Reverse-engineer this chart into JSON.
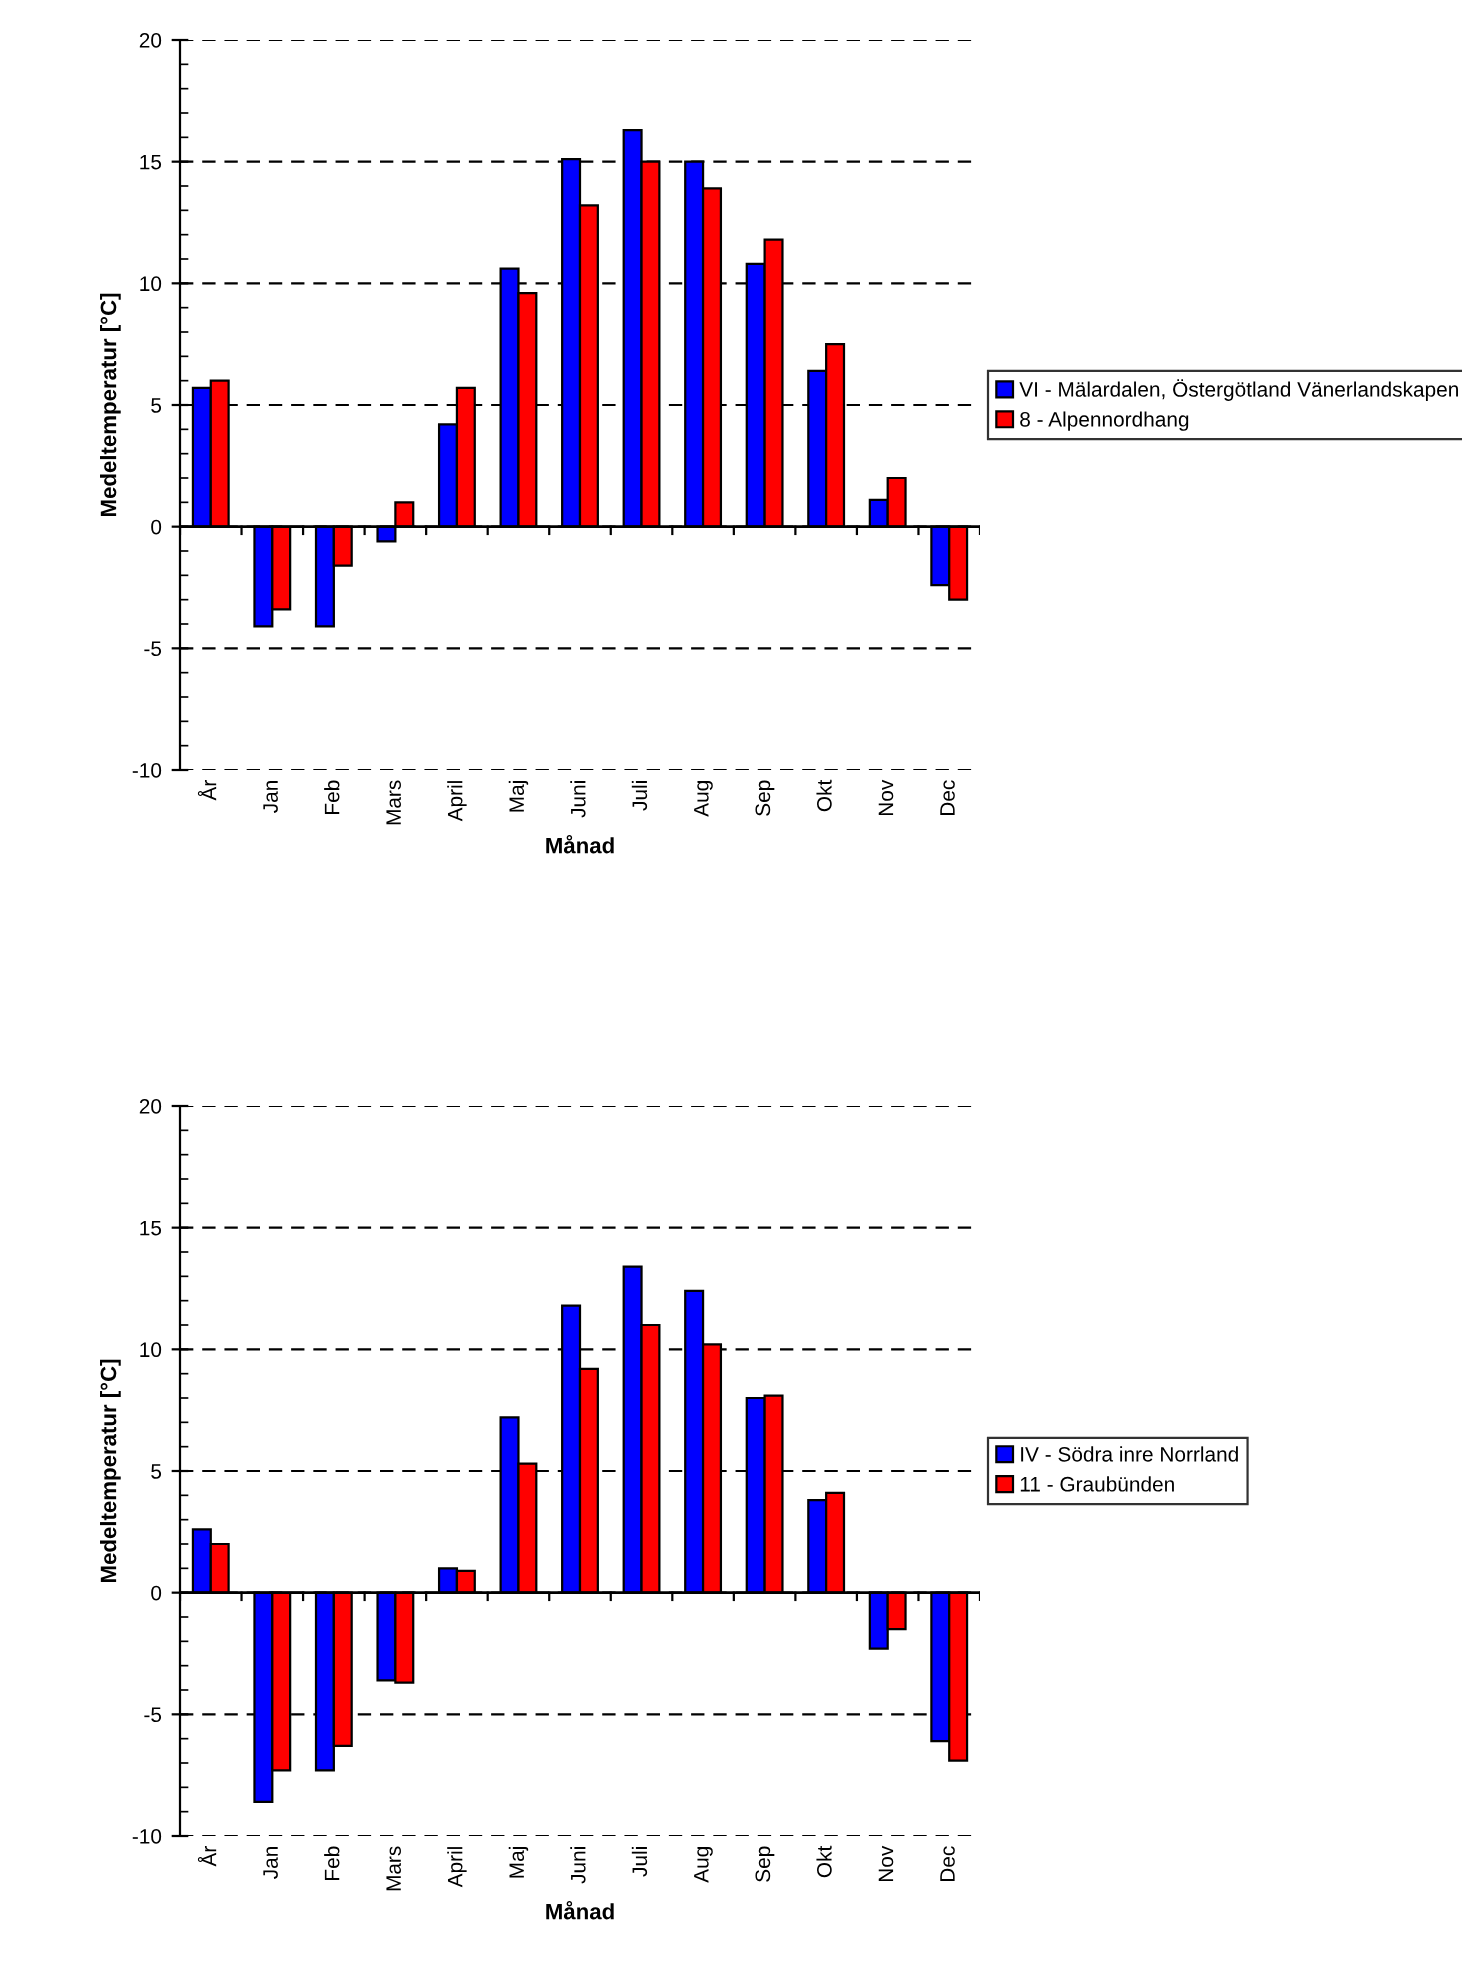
{
  "chart_data": [
    {
      "type": "bar",
      "xlabel": "Månad",
      "ylabel": "Medeltemperatur [°C]",
      "categories": [
        "År",
        "Jan",
        "Feb",
        "Mars",
        "April",
        "Maj",
        "Juni",
        "Juli",
        "Aug",
        "Sep",
        "Okt",
        "Nov",
        "Dec"
      ],
      "series": [
        {
          "name": "VI - Mälardalen, Östergötland Vänerlandskapen",
          "color": "#0000ff",
          "values": [
            5.7,
            -4.1,
            -4.1,
            -0.6,
            4.2,
            10.6,
            15.1,
            16.3,
            15.0,
            10.8,
            6.4,
            1.1,
            -2.4
          ]
        },
        {
          "name": "8 - Alpennordhang",
          "color": "#ff0000",
          "values": [
            6.0,
            -3.4,
            -1.6,
            1.0,
            5.7,
            9.6,
            13.2,
            15.0,
            13.9,
            11.8,
            7.5,
            2.0,
            -3.0
          ]
        }
      ],
      "ylim": [
        -10,
        20
      ],
      "yticks": [
        -10,
        -5,
        0,
        5,
        10,
        15,
        20
      ],
      "grid": "y",
      "legend": "right"
    },
    {
      "type": "bar",
      "xlabel": "Månad",
      "ylabel": "Medeltemperatur [°C]",
      "categories": [
        "År",
        "Jan",
        "Feb",
        "Mars",
        "April",
        "Maj",
        "Juni",
        "Juli",
        "Aug",
        "Sep",
        "Okt",
        "Nov",
        "Dec"
      ],
      "series": [
        {
          "name": "IV - Södra inre Norrland",
          "color": "#0000ff",
          "values": [
            2.6,
            -8.6,
            -7.3,
            -3.6,
            1.0,
            7.2,
            11.8,
            13.4,
            12.4,
            8.0,
            3.8,
            -2.3,
            -6.1
          ]
        },
        {
          "name": "11 - Graubünden",
          "color": "#ff0000",
          "values": [
            2.0,
            -7.3,
            -6.3,
            -3.7,
            0.9,
            5.3,
            9.2,
            11.0,
            10.2,
            8.1,
            4.1,
            -1.5,
            -6.9
          ]
        }
      ],
      "ylim": [
        -10,
        20
      ],
      "yticks": [
        -10,
        -5,
        0,
        5,
        10,
        15,
        20
      ],
      "grid": "y",
      "legend": "right"
    }
  ]
}
